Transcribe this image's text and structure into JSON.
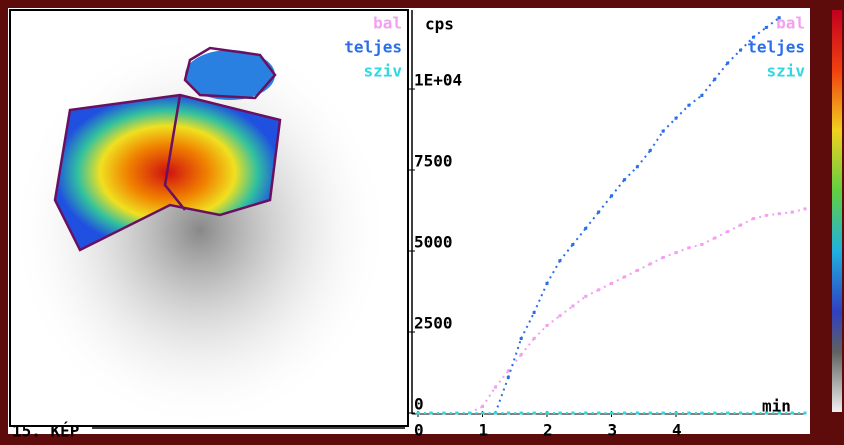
{
  "image_label": "15. KÉP",
  "chart_data": {
    "type": "line",
    "ylabel": "cps",
    "xlabel": "min",
    "x": [
      0,
      0.2,
      0.4,
      0.6,
      0.8,
      1.0,
      1.2,
      1.4,
      1.6,
      1.8,
      2.0,
      2.2,
      2.4,
      2.6,
      2.8,
      3.0,
      3.2,
      3.4,
      3.6,
      3.8,
      4.0,
      4.2,
      4.4,
      4.6,
      4.8,
      5.0,
      5.2,
      5.4,
      5.6,
      5.8,
      6.0
    ],
    "series": [
      {
        "name": "bal",
        "color": "#f4a0f0",
        "values": [
          null,
          null,
          null,
          null,
          0,
          200,
          800,
          1300,
          1800,
          2300,
          2700,
          3000,
          3300,
          3600,
          3800,
          4000,
          4200,
          4400,
          4600,
          4800,
          4950,
          5100,
          5200,
          5400,
          5600,
          5800,
          6000,
          6100,
          6150,
          6200,
          6300
        ]
      },
      {
        "name": "teljes",
        "color": "#2a6ee8",
        "values": [
          null,
          null,
          null,
          null,
          null,
          null,
          0,
          1100,
          2300,
          3100,
          4000,
          4700,
          5200,
          5700,
          6200,
          6700,
          7200,
          7600,
          8100,
          8700,
          9100,
          9500,
          9800,
          10300,
          10800,
          11200,
          11600,
          11900,
          12200,
          null,
          null
        ]
      },
      {
        "name": "sziv",
        "color": "#30d8e0",
        "values": [
          0,
          0,
          0,
          0,
          0,
          0,
          0,
          0,
          0,
          0,
          0,
          0,
          0,
          0,
          0,
          0,
          0,
          0,
          0,
          0,
          0,
          0,
          0,
          0,
          0,
          0,
          0,
          0,
          0,
          0,
          0
        ]
      }
    ],
    "xlim": [
      0,
      6.0
    ],
    "xticks": [
      0,
      1,
      2,
      3,
      4
    ],
    "ylim": [
      0,
      12300
    ],
    "yticks": [
      0,
      2500,
      5000,
      7500,
      {
        "value": 10000,
        "label": "1E+04"
      }
    ]
  }
}
